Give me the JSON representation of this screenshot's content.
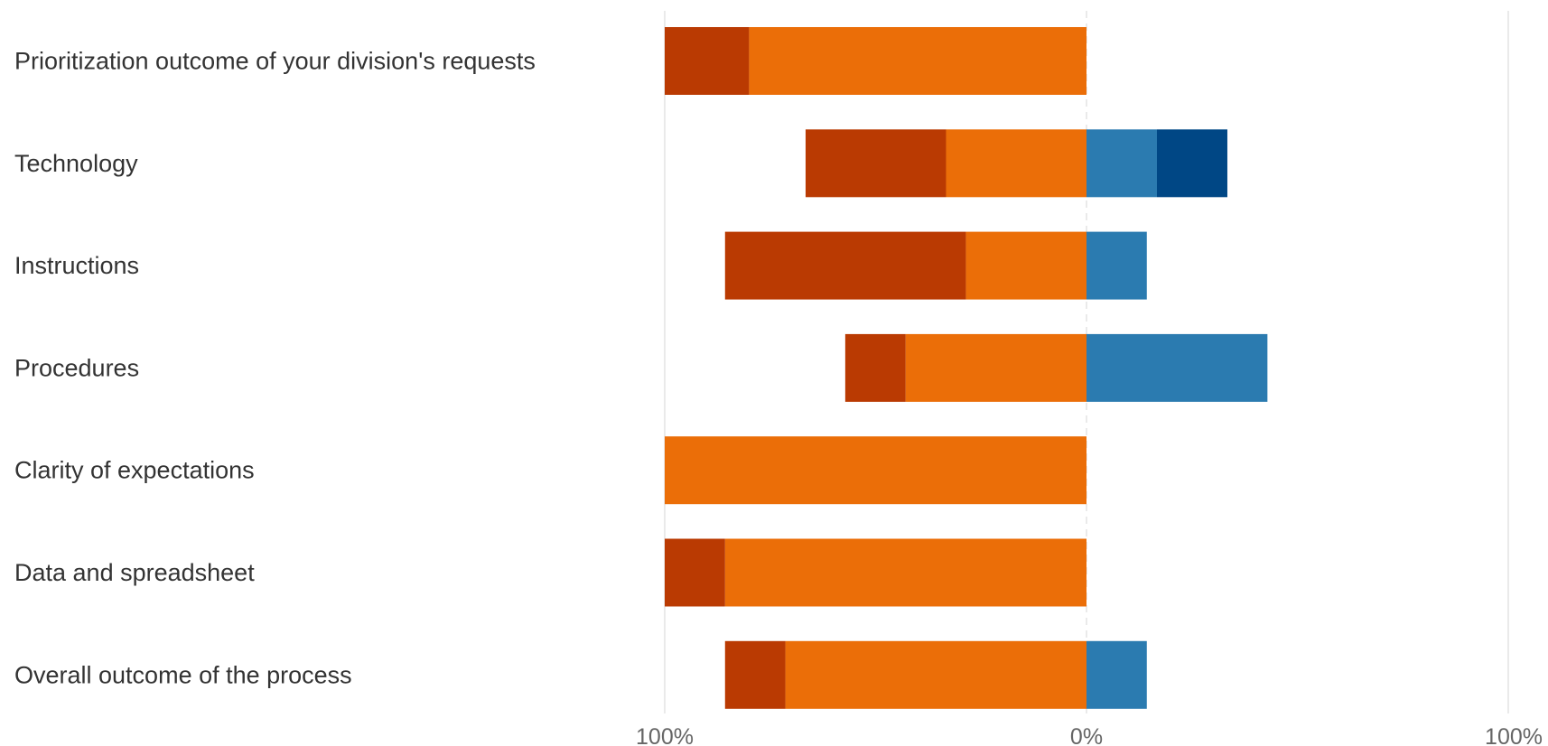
{
  "chart_data": {
    "type": "bar",
    "orientation": "horizontal",
    "stacked": true,
    "diverging": true,
    "categories": [
      "Prioritization outcome of your division's requests",
      "Technology",
      "Instructions",
      "Procedures",
      "Clarity of expectations",
      "Data and spreadsheet",
      "Overall outcome of the process"
    ],
    "series": [
      {
        "side": "negative",
        "color": "#EB6E08",
        "values": [
          80,
          33.3,
          28.6,
          42.9,
          100,
          85.7,
          71.4
        ]
      },
      {
        "side": "negative",
        "color": "#BA3A02",
        "values": [
          20,
          33.3,
          57.1,
          14.3,
          0,
          14.3,
          14.3
        ]
      },
      {
        "side": "positive",
        "color": "#2B7BB0",
        "values": [
          0,
          16.7,
          14.3,
          42.9,
          0,
          0,
          14.3
        ]
      },
      {
        "side": "positive",
        "color": "#004785",
        "values": [
          0,
          16.7,
          0,
          0,
          0,
          0,
          0
        ]
      }
    ],
    "xlim": [
      -100,
      100
    ],
    "x_ticks": [
      {
        "value": -100,
        "label": "100%"
      },
      {
        "value": 0,
        "label": "0%"
      },
      {
        "value": 100,
        "label": "100%"
      }
    ],
    "grid": true,
    "legend": "none",
    "title": "",
    "xlabel": "",
    "ylabel": ""
  }
}
